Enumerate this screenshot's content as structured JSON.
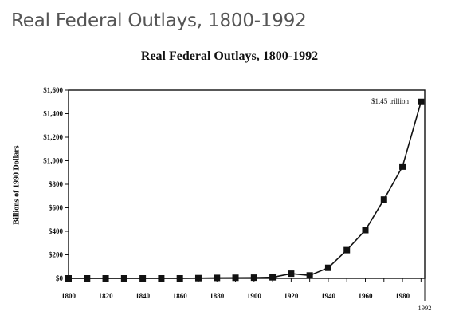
{
  "page": {
    "heading": "Real Federal Outlays, 1800-1992"
  },
  "chart_data": {
    "type": "line",
    "title": "Real Federal Outlays, 1800-1992",
    "xlabel": "",
    "ylabel": "Billions of 1990 Dollars",
    "x": [
      1800,
      1810,
      1820,
      1830,
      1840,
      1850,
      1860,
      1870,
      1880,
      1890,
      1900,
      1910,
      1920,
      1930,
      1940,
      1950,
      1960,
      1970,
      1980,
      1990
    ],
    "series": [
      {
        "values": [
          0,
          0,
          0,
          0,
          0,
          0,
          0,
          2,
          4,
          5,
          6,
          9,
          40,
          25,
          90,
          240,
          410,
          670,
          950,
          1500
        ]
      }
    ],
    "xlim": [
      1800,
      1992
    ],
    "ylim": [
      0,
      1600
    ],
    "xticks": [
      "1800",
      "1820",
      "1840",
      "1860",
      "1880",
      "1900",
      "1920",
      "1940",
      "1960",
      "1980",
      "1992"
    ],
    "yticks": [
      "$0",
      "$200",
      "$400",
      "$600",
      "$800",
      "$1,000",
      "$1,200",
      "$1,400",
      "$1,600"
    ],
    "annotation": "$1.45 trillion",
    "grid": false,
    "legend": "none"
  }
}
